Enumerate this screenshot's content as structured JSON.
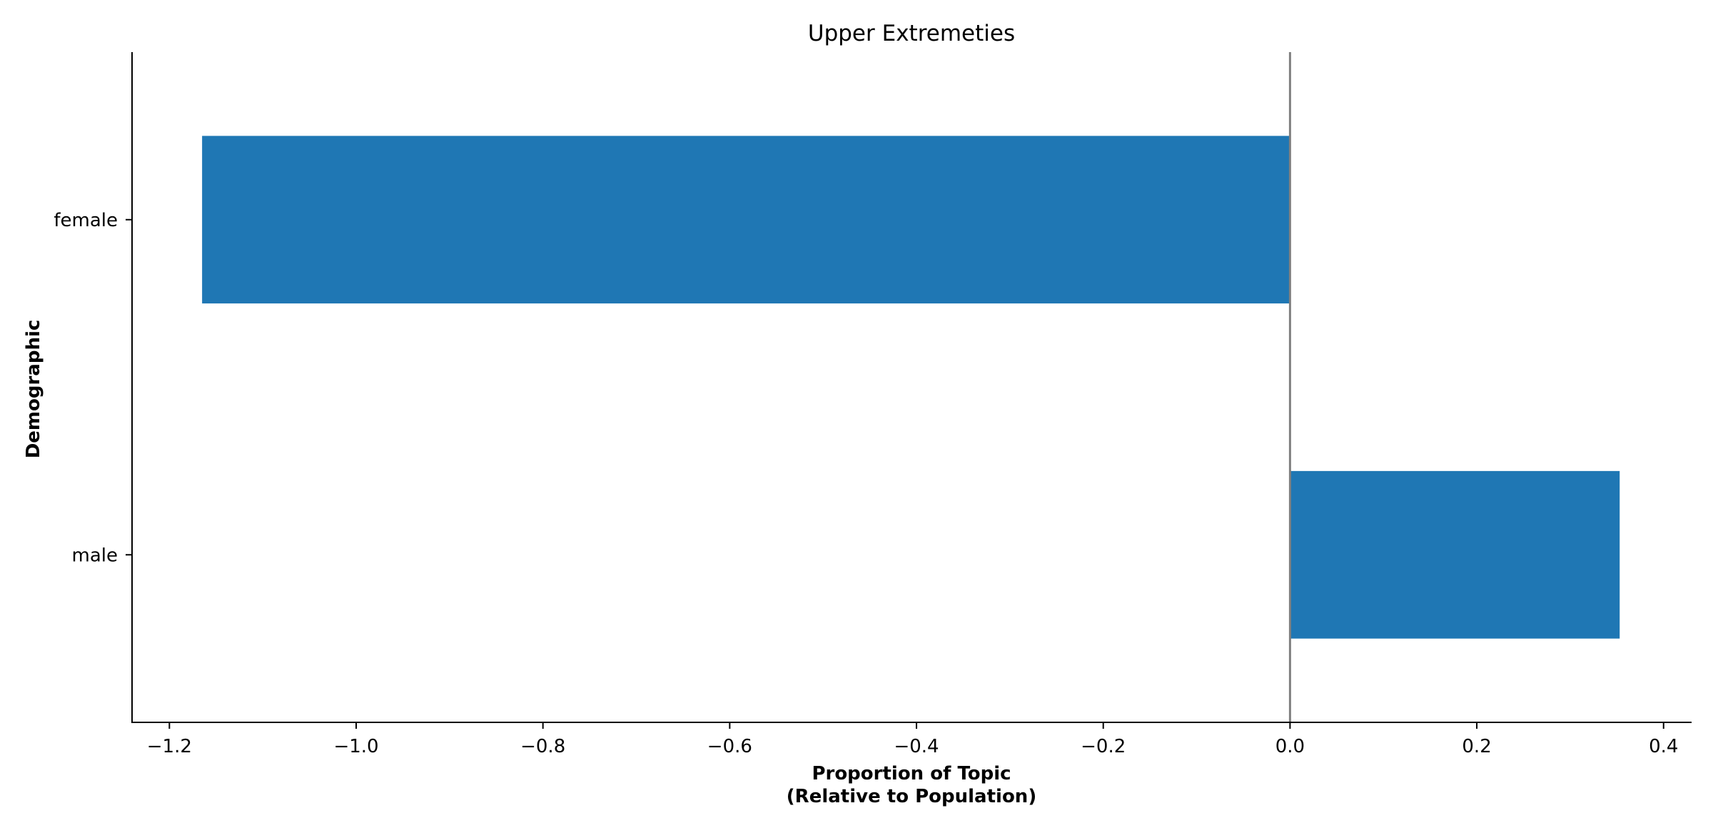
{
  "chart_data": {
    "type": "bar",
    "orientation": "horizontal",
    "title": "Upper Extremeties",
    "xlabel_line1": "Proportion of Topic",
    "xlabel_line2": "(Relative to Population)",
    "ylabel": "Demographic",
    "categories": [
      "female",
      "male"
    ],
    "values": [
      -1.165,
      0.353
    ],
    "xlim": [
      -1.24,
      0.43
    ],
    "xticks": [
      -1.2,
      -1.0,
      -0.8,
      -0.6,
      -0.4,
      -0.2,
      0.0,
      0.2,
      0.4
    ],
    "xtick_labels": [
      "−1.2",
      "−1.0",
      "−0.8",
      "−0.6",
      "−0.4",
      "−0.2",
      "0.0",
      "0.2",
      "0.4"
    ],
    "grid": false,
    "reference_line_x": 0.0,
    "bar_color": "#1f77b4",
    "reference_line_color": "#808080"
  }
}
